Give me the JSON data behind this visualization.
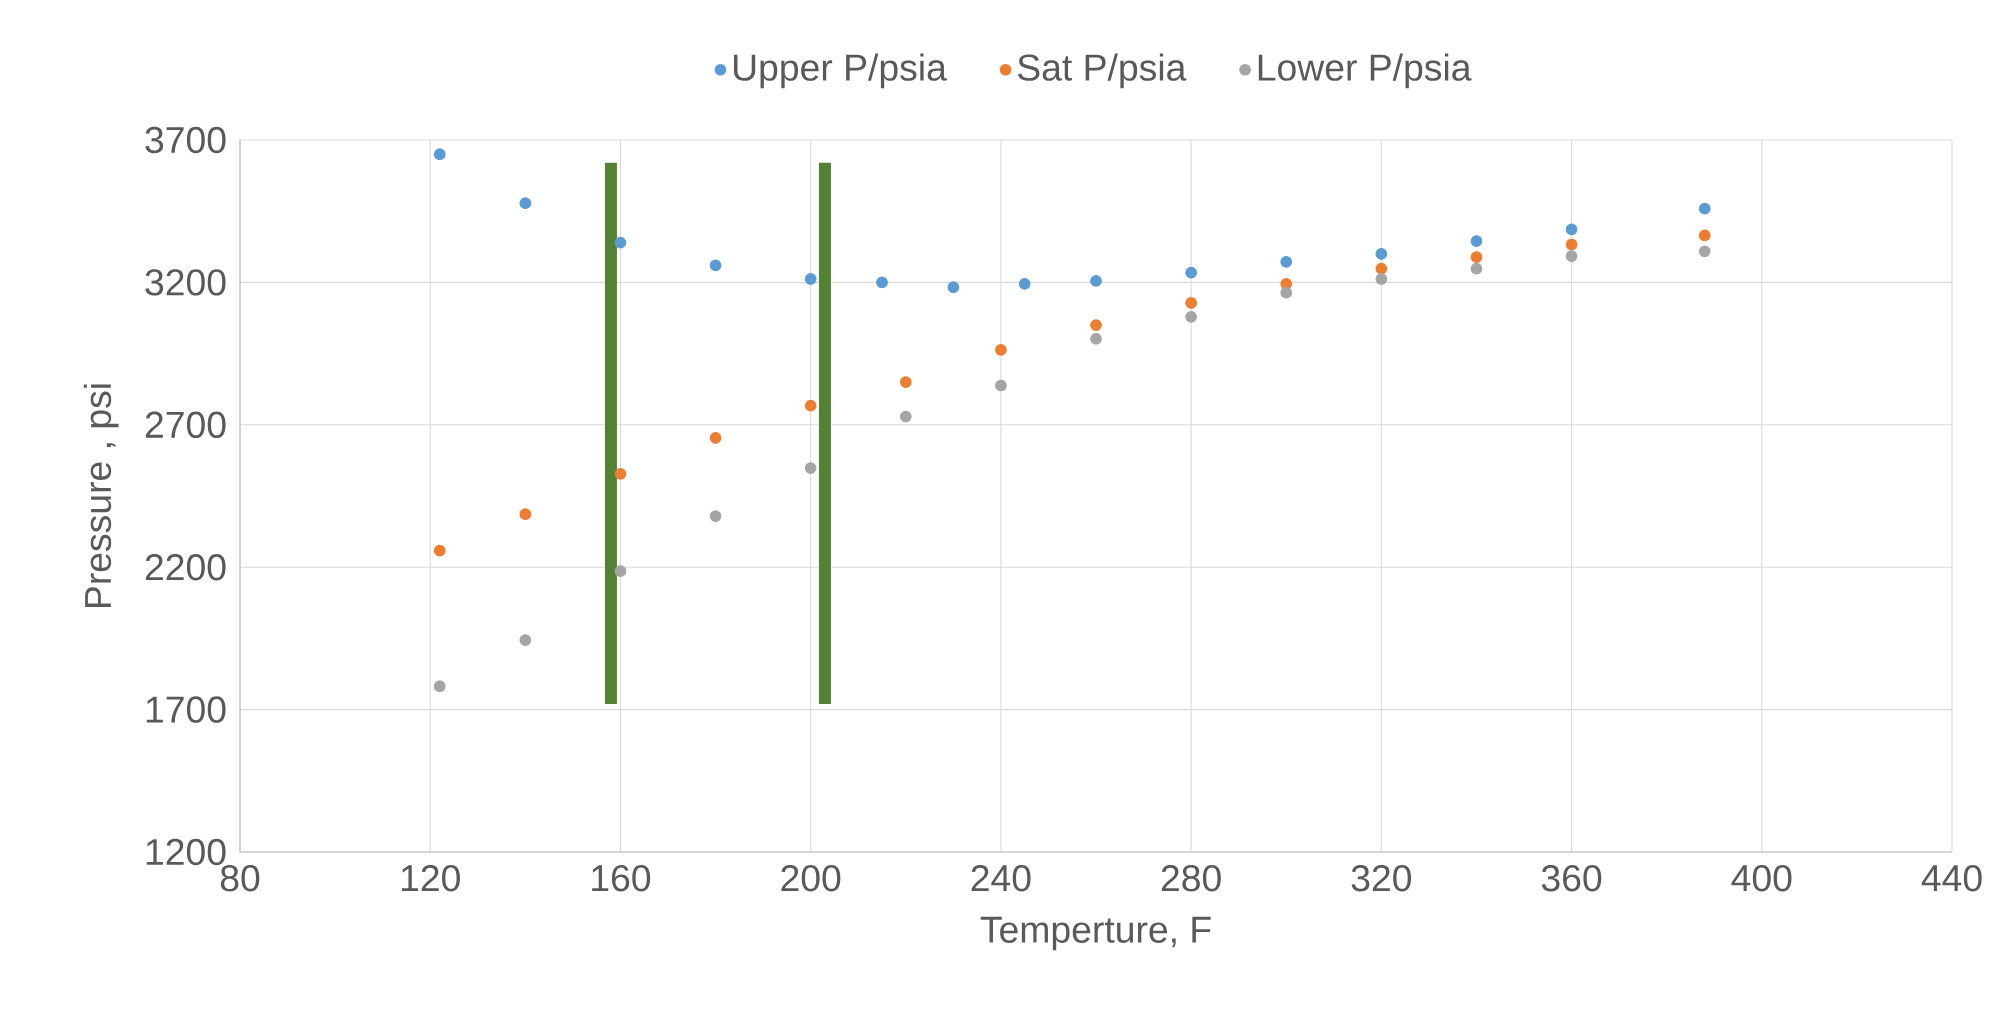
{
  "chart_data": {
    "type": "scatter",
    "xlabel": "Temperture, F",
    "ylabel": "Pressure , psi",
    "xlim": [
      80,
      440
    ],
    "xticks": [
      80,
      120,
      160,
      200,
      240,
      280,
      320,
      360,
      400,
      440
    ],
    "ylim": [
      1200,
      3700
    ],
    "yticks": [
      1200,
      1700,
      2200,
      2700,
      3200,
      3700
    ],
    "grid": true,
    "legend": "top",
    "marker": "circle",
    "series": [
      {
        "name": "Upper P/psia",
        "color": "#5b9bd5",
        "x": [
          122,
          140,
          160,
          180,
          200,
          215,
          230,
          245,
          260,
          280,
          300,
          320,
          340,
          360,
          388
        ],
        "values": [
          3650,
          3478,
          3340,
          3260,
          3212,
          3200,
          3183,
          3195,
          3205,
          3234,
          3272,
          3300,
          3345,
          3386,
          3459
        ]
      },
      {
        "name": "Sat P/psia",
        "color": "#ed7d31",
        "x": [
          122,
          140,
          160,
          180,
          200,
          220,
          240,
          260,
          280,
          300,
          320,
          340,
          360,
          388
        ],
        "values": [
          2258,
          2386,
          2528,
          2654,
          2767,
          2850,
          2963,
          3050,
          3128,
          3195,
          3248,
          3289,
          3333,
          3365
        ]
      },
      {
        "name": "Lower P/psia",
        "color": "#a5a5a5",
        "x": [
          122,
          140,
          160,
          180,
          200,
          220,
          240,
          260,
          280,
          300,
          320,
          340,
          360,
          388
        ],
        "values": [
          1782,
          1944,
          2186,
          2379,
          2548,
          2729,
          2838,
          3002,
          3079,
          3164,
          3212,
          3248,
          3292,
          3309
        ]
      },
      {
        "type": "line",
        "marker": "none",
        "color": "#548235",
        "x": [
          158,
          158
        ],
        "values": [
          1720,
          3620
        ]
      },
      {
        "type": "line",
        "marker": "none",
        "color": "#548235",
        "x": [
          203,
          203
        ],
        "values": [
          1720,
          3620
        ]
      }
    ]
  }
}
